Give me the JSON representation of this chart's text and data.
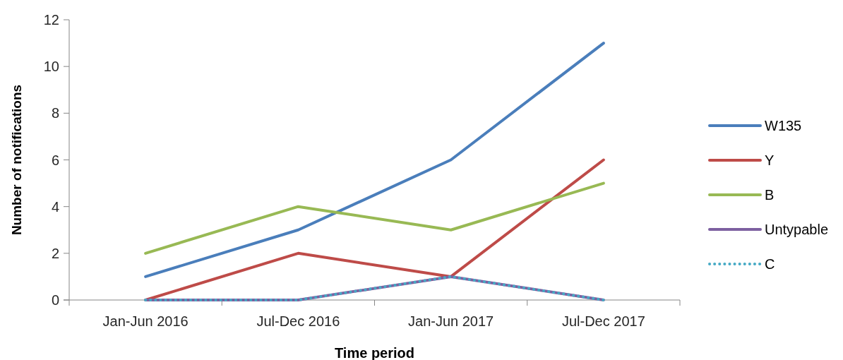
{
  "chart_data": {
    "type": "line",
    "xlabel": "Time period",
    "ylabel": "Number of notifications",
    "categories": [
      "Jan-Jun 2016",
      "Jul-Dec 2016",
      "Jan-Jun 2017",
      "Jul-Dec 2017"
    ],
    "series": [
      {
        "name": "W135",
        "color": "#4a7ebb",
        "values": [
          1,
          3,
          6,
          11
        ]
      },
      {
        "name": "Y",
        "color": "#be4b48",
        "values": [
          0,
          2,
          1,
          6
        ]
      },
      {
        "name": "B",
        "color": "#98b954",
        "values": [
          2,
          4,
          3,
          5
        ]
      },
      {
        "name": "Untypable",
        "color": "#7d60a0",
        "values": [
          0,
          0,
          1,
          0
        ]
      },
      {
        "name": "C",
        "color": "#46aac5",
        "values": [
          0,
          0,
          1,
          0
        ],
        "line_style": "dotted"
      }
    ],
    "ylim": [
      0,
      12
    ],
    "yticks": [
      0,
      2,
      4,
      6,
      8,
      10,
      12
    ],
    "grid": false,
    "legend": "right",
    "marker": "none",
    "line_style": "solid"
  }
}
